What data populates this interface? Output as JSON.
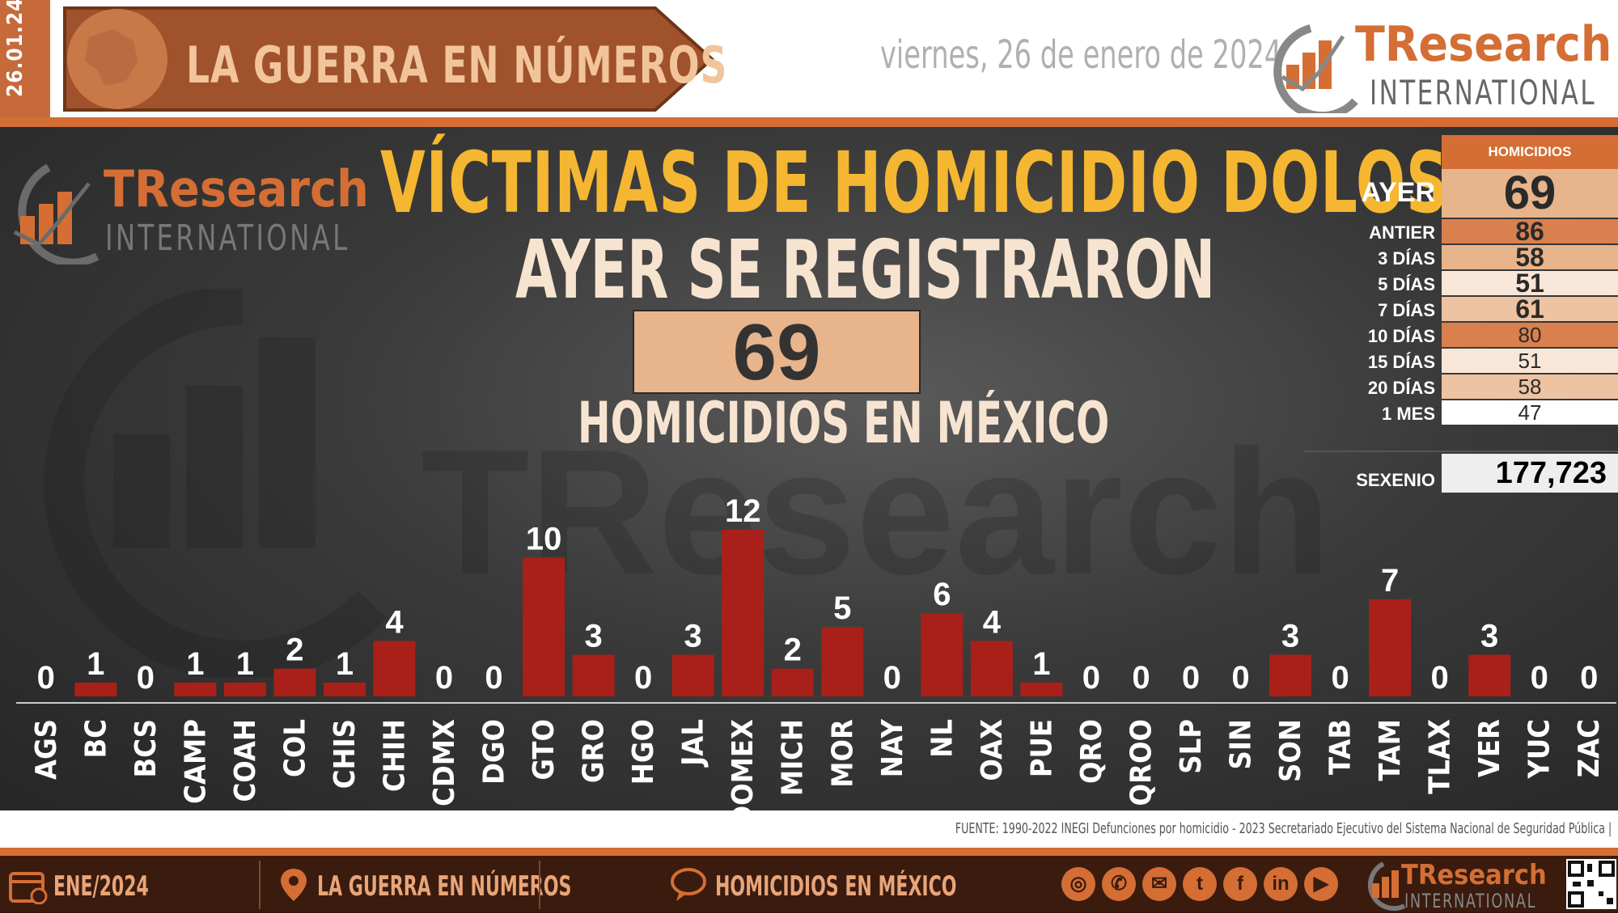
{
  "header": {
    "date_code": "26.01.24",
    "banner_title": "LA GUERRA EN NÚMEROS",
    "date_long": "viernes, 26 de enero de 2024",
    "brand_main": "TResearch",
    "brand_sub": "INTERNATIONAL"
  },
  "main": {
    "title": "VÍCTIMAS DE HOMICIDIO DOLOSO",
    "subtitle": "AYER SE REGISTRARON",
    "big_number": "69",
    "caption": "HOMICIDIOS EN MÉXICO",
    "watermark": "TResearch"
  },
  "side_table": {
    "header": "HOMICIDIOS",
    "rows": [
      {
        "label": "AYER",
        "value": "69"
      },
      {
        "label": "ANTIER",
        "value": "86"
      },
      {
        "label": "3 DÍAS",
        "value": "58"
      },
      {
        "label": "5 DÍAS",
        "value": "51"
      },
      {
        "label": "7 DÍAS",
        "value": "61"
      },
      {
        "label": "10 DÍAS",
        "value": "80"
      },
      {
        "label": "15 DÍAS",
        "value": "51"
      },
      {
        "label": "20 DÍAS",
        "value": "58"
      },
      {
        "label": "1 MES",
        "value": "47"
      }
    ],
    "sexenio_label": "SEXENIO",
    "sexenio_value": "177,723"
  },
  "chart_data": {
    "type": "bar",
    "title": "",
    "xlabel": "",
    "ylabel": "",
    "ylim": [
      0,
      12
    ],
    "bar_color": "#a82019",
    "categories": [
      "AGS",
      "BC",
      "BCS",
      "CAMP",
      "COAH",
      "COL",
      "CHIS",
      "CHIH",
      "CDMX",
      "DGO",
      "GTO",
      "GRO",
      "HGO",
      "JAL",
      "EDOMEX",
      "MICH",
      "MOR",
      "NAY",
      "NL",
      "OAX",
      "PUE",
      "QRO",
      "QROO",
      "SLP",
      "SIN",
      "SON",
      "TAB",
      "TAM",
      "TLAX",
      "VER",
      "YUC",
      "ZAC"
    ],
    "values": [
      0,
      1,
      0,
      1,
      1,
      2,
      1,
      4,
      0,
      0,
      10,
      3,
      0,
      3,
      12,
      2,
      5,
      0,
      6,
      4,
      1,
      0,
      0,
      0,
      0,
      3,
      0,
      7,
      0,
      3,
      0,
      0
    ]
  },
  "source": "FUENTE: 1990-2022 INEGI Defunciones por homicidio - 2023 Secretariado Ejecutivo del Sistema Nacional de Seguridad Pública |",
  "footer": {
    "month": "ENE/2024",
    "section": "LA GUERRA EN NÚMEROS",
    "topic": "HOMICIDIOS EN MÉXICO",
    "brand_main": "TResearch",
    "brand_sub": "INTERNATIONAL"
  },
  "colors": {
    "accent": "#d46e34",
    "title_yellow": "#f5b731",
    "bar": "#a82019"
  },
  "icons": [
    "calendar-icon",
    "map-pin-icon",
    "chat-icon",
    "globe-icon",
    "phone-icon",
    "mail-icon",
    "twitter-icon",
    "facebook-icon",
    "linkedin-icon",
    "youtube-icon",
    "qr-code"
  ]
}
